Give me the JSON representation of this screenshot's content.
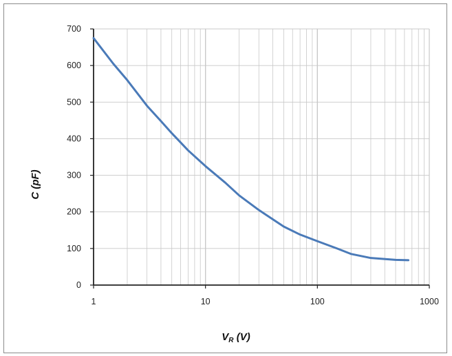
{
  "chart_data": {
    "type": "line",
    "title": "",
    "xlabel": {
      "main": "V",
      "sub": "R",
      "unit": " (V)"
    },
    "ylabel": "C (pF)",
    "x_scale": "log",
    "xlim": [
      1,
      1000
    ],
    "ylim": [
      0,
      700
    ],
    "x_ticks": [
      1,
      10,
      100,
      1000
    ],
    "y_ticks": [
      0,
      100,
      200,
      300,
      400,
      500,
      600,
      700
    ],
    "grid": true,
    "legend": "none",
    "colors": {
      "line": "#4a7ab8",
      "grid": "#c8c8c8",
      "axis": "#222222"
    },
    "series": [
      {
        "x": [
          1,
          1.5,
          2,
          3,
          4,
          5,
          7,
          10,
          15,
          20,
          30,
          50,
          70,
          100,
          150,
          200,
          300,
          500,
          650
        ],
        "y": [
          675,
          605,
          560,
          490,
          448,
          415,
          368,
          325,
          280,
          245,
          205,
          160,
          138,
          120,
          100,
          85,
          74,
          69,
          68
        ]
      }
    ]
  }
}
